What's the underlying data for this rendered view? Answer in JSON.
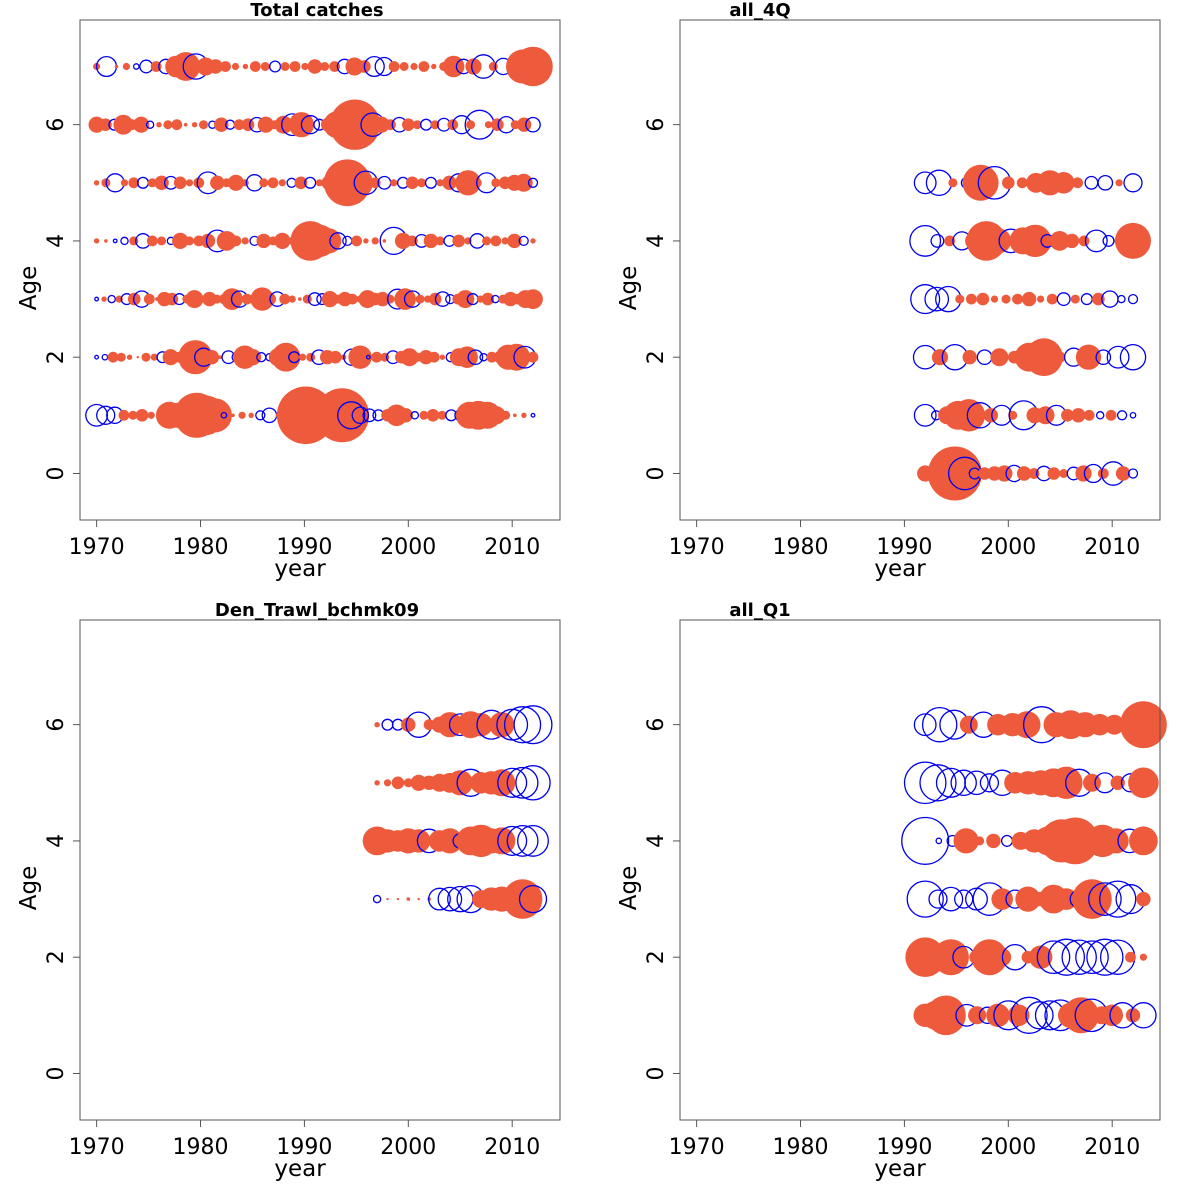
{
  "colors": {
    "positive": "#EE5A3C",
    "negative": "#0000EE",
    "frame": "#555555"
  },
  "chart_data": [
    {
      "type": "scatter",
      "subtype": "bubble-residuals",
      "title": "Total catches",
      "xlabel": "year",
      "ylabel": "Age",
      "xlim": [
        1968.4,
        2014.6
      ],
      "ylim": [
        -0.8,
        7.8
      ],
      "xticks": [
        1970,
        1980,
        1990,
        2000,
        2010
      ],
      "yticks": [
        0,
        2,
        4,
        6
      ],
      "years": [
        1970,
        2012
      ],
      "ages": [
        1,
        2,
        3,
        4,
        5,
        6,
        7
      ],
      "residuals": [
        [
          -1.2,
          -1.0,
          -0.9,
          0.6,
          0.5,
          0.7,
          0.4,
          0.3,
          1.5,
          1.4,
          1.2,
          2.5,
          2.2,
          1.9,
          -0.3,
          0.2,
          0.4,
          0.3,
          -0.5,
          -0.8,
          0.3,
          0.1,
          -0.2,
          3.2,
          1.6,
          -0.3,
          -0.7,
          3.0,
          -1.5,
          -0.9,
          -0.7,
          -0.6,
          0.7,
          1.2,
          0.8,
          -0.4,
          0.5,
          0.7,
          0.5,
          -0.6,
          -0.6,
          1.5,
          1.6,
          1.5,
          1.0,
          0.5,
          0.2,
          0.3,
          -0.2
        ],
        [
          -0.2,
          -0.3,
          0.6,
          0.5,
          0.3,
          0.1,
          0.5,
          0.4,
          -0.6,
          0.9,
          0.6,
          0.5,
          1.9,
          -1.0,
          0.8,
          0.2,
          -0.7,
          -0.5,
          1.3,
          0.9,
          -0.5,
          -0.4,
          1.0,
          1.6,
          -0.6,
          0.4,
          0.5,
          -0.8,
          0.8,
          0.7,
          0.3,
          -0.9,
          1.3,
          -0.2,
          0.6,
          0.5,
          -0.7,
          0.7,
          1.0,
          0.5,
          0.8,
          0.6,
          0.3,
          -0.5,
          1.0,
          1.2,
          -0.8,
          -0.4,
          0.6,
          0.7,
          1.4,
          1.5,
          -1.2,
          0.6
        ],
        [
          -0.2,
          0.3,
          -0.4,
          0.4,
          -0.6,
          0.7,
          -0.9,
          0.6,
          0.2,
          0.8,
          0.7,
          -0.6,
          0.5,
          1.0,
          0.4,
          0.8,
          0.5,
          0.6,
          1.2,
          -0.9,
          0.6,
          0.4,
          1.3,
          0.7,
          -0.8,
          0.6,
          0.4,
          0.2,
          0.5,
          -0.7,
          -0.6,
          0.9,
          0.5,
          0.8,
          0.6,
          0.4,
          1.0,
          0.7,
          0.8,
          0.5,
          -1.1,
          1.2,
          -0.9,
          0.5,
          0.4,
          0.7,
          -0.8,
          -0.5,
          0.6,
          1.0,
          -0.6,
          0.4,
          0.7,
          -0.4,
          0.5,
          0.8,
          0.6,
          1.0,
          1.1
        ],
        [
          0.3,
          0.2,
          -0.2,
          -0.4,
          0.5,
          -0.8,
          0.6,
          0.5,
          -0.4,
          0.9,
          0.5,
          0.6,
          0.8,
          -1.2,
          1.1,
          0.6,
          0.4,
          -0.5,
          0.8,
          0.5,
          0.9,
          0.4,
          -0.6,
          2.2,
          1.8,
          1.4,
          -0.9,
          -0.5,
          0.6,
          0.3,
          0.4,
          0.2,
          -1.5,
          0.9,
          0.6,
          -0.7,
          0.8,
          0.5,
          -0.6,
          0.7,
          0.4,
          -0.8,
          0.5,
          0.6,
          0.4,
          0.8,
          -0.5,
          0.3
        ],
        [
          0.3,
          0.5,
          -1.0,
          0.4,
          0.6,
          -0.6,
          0.5,
          0.8,
          -0.7,
          0.7,
          0.4,
          0.6,
          -1.2,
          0.8,
          0.5,
          0.9,
          0.4,
          -0.9,
          0.5,
          0.6,
          0.4,
          -0.5,
          0.7,
          -0.6,
          0.4,
          0.8,
          0.5,
          2.6,
          1.8,
          -1.3,
          0.6,
          -0.7,
          0.4,
          -0.6,
          0.7,
          0.5,
          -0.6,
          0.4,
          0.8,
          -1.0,
          1.4,
          0.5,
          -1.1,
          0.5,
          0.7,
          0.9,
          1.0,
          -0.5
        ],
        [
          0.9,
          0.7,
          -0.6,
          1.1,
          0.6,
          0.9,
          -0.4,
          0.3,
          0.5,
          0.6,
          0.2,
          0.3,
          0.5,
          -0.4,
          0.8,
          -0.5,
          0.6,
          0.7,
          -0.8,
          0.9,
          0.5,
          1.0,
          -1.2,
          1.4,
          -1.0,
          -0.6,
          0.8,
          1.5,
          2.0,
          2.8,
          1.6,
          -1.3,
          0.9,
          0.6,
          -0.8,
          0.7,
          0.5,
          -0.6,
          0.5,
          -0.7,
          0.6,
          -1.0,
          0.5,
          -1.6,
          0.4,
          0.7,
          -0.9,
          0.5,
          0.8,
          -0.8
        ],
        [
          0.4,
          -1.1,
          0.2,
          0.4,
          -0.3,
          -0.7,
          0.6,
          -0.8,
          1.2,
          1.6,
          -1.4,
          1.0,
          0.8,
          0.6,
          0.4,
          0.3,
          0.6,
          0.5,
          -0.6,
          0.5,
          0.6,
          0.4,
          0.8,
          0.5,
          0.6,
          -0.8,
          1.0,
          0.7,
          -1.1,
          -1.0,
          0.6,
          0.5,
          0.4,
          0.6,
          0.3,
          0.5,
          1.2,
          -0.8,
          0.9,
          -1.3,
          0.5,
          -0.9,
          0.6,
          1.9,
          2.2
        ]
      ]
    },
    {
      "type": "scatter",
      "subtype": "bubble-residuals",
      "title": "all_4Q",
      "xlabel": "year",
      "ylabel": "Age",
      "xlim": [
        1968.4,
        2014.6
      ],
      "ylim": [
        -0.8,
        7.8
      ],
      "xticks": [
        1970,
        1980,
        1990,
        2000,
        2010
      ],
      "yticks": [
        0,
        2,
        4,
        6
      ],
      "years": [
        1992,
        2012
      ],
      "ages": [
        0,
        1,
        2,
        3,
        4,
        5
      ],
      "residuals": [
        [
          0.9,
          1.0,
          1.6,
          3.0,
          -1.8,
          -0.6,
          0.7,
          0.8,
          0.9,
          -0.9,
          0.8,
          0.6,
          -0.8,
          0.7,
          0.5,
          -0.7,
          0.9,
          -1.0,
          0.6,
          -1.3,
          0.8,
          -0.5
        ],
        [
          -1.2,
          -0.5,
          1.0,
          1.6,
          1.8,
          -1.4,
          0.8,
          -1.1,
          0.5,
          -1.6,
          0.9,
          1.0,
          -1.1,
          0.7,
          0.8,
          0.6,
          -0.4,
          0.6,
          -0.5,
          -0.3
        ],
        [
          -1.3,
          0.9,
          -1.4,
          0.8,
          -0.8,
          1.0,
          0.7,
          1.6,
          2.1,
          0.7,
          -1.0,
          1.4,
          -0.8,
          -1.2,
          -1.4
        ],
        [
          -1.6,
          -1.3,
          -1.4,
          0.5,
          0.6,
          0.7,
          0.4,
          0.5,
          0.6,
          0.8,
          0.4,
          0.6,
          -0.7,
          0.5,
          -0.6,
          0.7,
          -0.9,
          -0.4,
          -0.5
        ],
        [
          -1.7,
          -0.7,
          0.6,
          -1.0,
          1.0,
          2.2,
          1.4,
          -1.3,
          1.5,
          1.8,
          -0.7,
          1.1,
          0.8,
          0.6,
          -1.2,
          -0.6,
          0.7,
          2.0
        ],
        [
          -1.2,
          -1.4,
          0.5,
          -0.6,
          2.0,
          -1.8,
          0.7,
          0.6,
          1.1,
          1.4,
          1.2,
          0.6,
          -0.7,
          -0.8,
          0.4,
          -1.0
        ]
      ]
    },
    {
      "type": "scatter",
      "subtype": "bubble-residuals",
      "title": "Den_Trawl_bchmk09",
      "xlabel": "year",
      "ylabel": "Age",
      "xlim": [
        1968.4,
        2014.6
      ],
      "ylim": [
        -0.8,
        7.8
      ],
      "xticks": [
        1970,
        1980,
        1990,
        2000,
        2010
      ],
      "yticks": [
        0,
        2,
        4,
        6
      ],
      "years": [
        1997,
        2012
      ],
      "ages": [
        3,
        4,
        5,
        6
      ],
      "residuals": [
        [
          -0.4,
          0.1,
          0.1,
          0.2,
          0.1,
          0.2,
          -1.2,
          -1.3,
          -1.4,
          -1.5,
          1.0,
          1.3,
          1.4,
          1.2,
          2.2,
          -1.5
        ],
        [
          1.6,
          1.3,
          1.2,
          1.4,
          1.3,
          -1.3,
          1.2,
          1.4,
          -0.8,
          1.6,
          1.8,
          1.4,
          1.5,
          -1.6,
          -1.7,
          -1.7
        ],
        [
          0.3,
          0.4,
          0.7,
          0.5,
          0.9,
          0.8,
          1.0,
          1.1,
          1.4,
          -1.5,
          1.2,
          1.3,
          1.5,
          -1.6,
          -1.7,
          -1.9
        ],
        [
          0.3,
          -0.6,
          -0.6,
          0.8,
          -1.4,
          0.6,
          0.9,
          1.4,
          -1.2,
          1.5,
          1.3,
          -1.6,
          1.4,
          -1.7,
          -2.0,
          -2.1
        ]
      ]
    },
    {
      "type": "scatter",
      "subtype": "bubble-residuals",
      "title": "all_Q1",
      "xlabel": "year",
      "ylabel": "Age",
      "xlim": [
        1968.4,
        2014.6
      ],
      "ylim": [
        -0.8,
        7.8
      ],
      "xticks": [
        1970,
        1980,
        1990,
        2000,
        2010
      ],
      "yticks": [
        0,
        2,
        4,
        6
      ],
      "years": [
        1992,
        2013
      ],
      "ages": [
        1,
        2,
        3,
        4,
        5,
        6
      ],
      "residuals": [
        [
          1.3,
          1.6,
          2.2,
          0.7,
          -1.2,
          1.0,
          -0.9,
          1.3,
          -1.6,
          1.2,
          -2.0,
          -1.5,
          -1.6,
          -1.7,
          1.4,
          2.0,
          -1.8,
          1.0,
          1.2,
          -1.4,
          0.8,
          -1.4
        ],
        [
          2.2,
          -0.5,
          2.0,
          -1.2,
          0.8,
          2.0,
          1.0,
          -1.4,
          0.7,
          1.3,
          -1.8,
          -2.0,
          -1.9,
          -1.8,
          -2.0,
          -1.9,
          0.6,
          0.4
        ],
        [
          -2.0,
          -1.0,
          -1.3,
          -1.0,
          -1.2,
          -1.8,
          1.2,
          -1.0,
          1.4,
          0.8,
          1.6,
          1.2,
          -1.0,
          2.2,
          -1.8,
          -2.0,
          -1.6,
          0.8
        ],
        [
          -2.6,
          -0.3,
          -0.6,
          1.4,
          0.5,
          0.8,
          -0.6,
          1.0,
          1.3,
          1.6,
          2.4,
          2.6,
          1.6,
          1.8,
          1.4,
          -1.3,
          1.6
        ],
        [
          -2.3,
          -2.0,
          -1.6,
          -1.4,
          -1.3,
          -1.0,
          -1.4,
          1.2,
          1.3,
          1.4,
          1.6,
          1.8,
          -1.5,
          1.0,
          -1.1,
          0.8,
          -1.0,
          1.7
        ],
        [
          -1.2,
          -1.9,
          -1.6,
          1.0,
          -1.4,
          1.2,
          1.3,
          1.5,
          -2.0,
          1.4,
          1.6,
          1.4,
          1.2,
          1.1,
          0.8,
          2.6
        ]
      ]
    }
  ]
}
